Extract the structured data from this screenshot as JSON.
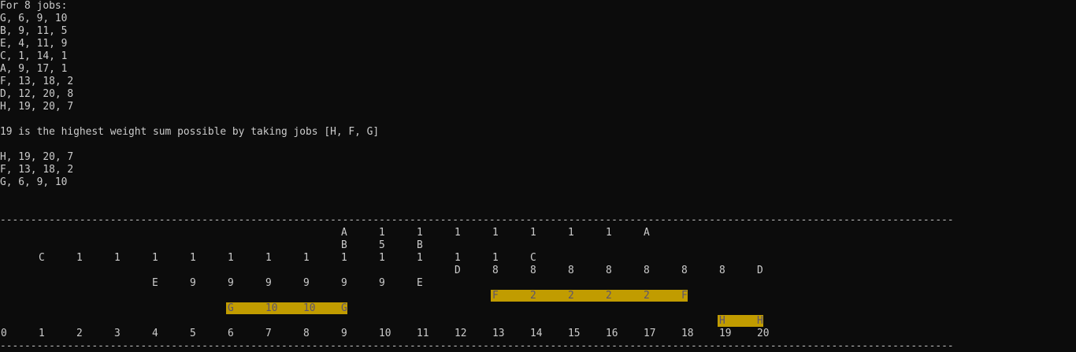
{
  "job_count_line": "For 8 jobs:",
  "jobs": [
    "G, 6, 9, 10",
    "B, 9, 11, 5",
    "E, 4, 11, 9",
    "C, 1, 14, 1",
    "A, 9, 17, 1",
    "F, 13, 18, 2",
    "D, 12, 20, 8",
    "H, 19, 20, 7"
  ],
  "result_line": "19 is the highest weight sum possible by taking jobs [H, F, G]",
  "selected_jobs": [
    "H, 19, 20, 7",
    "F, 13, 18, 2",
    "G, 6, 9, 10"
  ],
  "separator": "------------------------------------------------------------------------------------------------------------------------------------------------------------",
  "axis_labels": [
    "0",
    "1",
    "2",
    "3",
    "4",
    "5",
    "6",
    "7",
    "8",
    "9",
    "10",
    "11",
    "12",
    "13",
    "14",
    "15",
    "16",
    "17",
    "18",
    "19",
    "20"
  ],
  "stack_cells": [
    {
      "row": 0,
      "col": 9,
      "text": "A"
    },
    {
      "row": 0,
      "col": 10,
      "text": "1"
    },
    {
      "row": 0,
      "col": 11,
      "text": "1"
    },
    {
      "row": 0,
      "col": 12,
      "text": "1"
    },
    {
      "row": 0,
      "col": 13,
      "text": "1"
    },
    {
      "row": 0,
      "col": 14,
      "text": "1"
    },
    {
      "row": 0,
      "col": 15,
      "text": "1"
    },
    {
      "row": 0,
      "col": 16,
      "text": "1"
    },
    {
      "row": 0,
      "col": 17,
      "text": "A"
    },
    {
      "row": 1,
      "col": 9,
      "text": "B"
    },
    {
      "row": 1,
      "col": 10,
      "text": "5"
    },
    {
      "row": 1,
      "col": 11,
      "text": "B"
    },
    {
      "row": 2,
      "col": 1,
      "text": "C"
    },
    {
      "row": 2,
      "col": 2,
      "text": "1"
    },
    {
      "row": 2,
      "col": 3,
      "text": "1"
    },
    {
      "row": 2,
      "col": 4,
      "text": "1"
    },
    {
      "row": 2,
      "col": 5,
      "text": "1"
    },
    {
      "row": 2,
      "col": 6,
      "text": "1"
    },
    {
      "row": 2,
      "col": 7,
      "text": "1"
    },
    {
      "row": 2,
      "col": 8,
      "text": "1"
    },
    {
      "row": 2,
      "col": 9,
      "text": "1"
    },
    {
      "row": 2,
      "col": 10,
      "text": "1"
    },
    {
      "row": 2,
      "col": 11,
      "text": "1"
    },
    {
      "row": 2,
      "col": 12,
      "text": "1"
    },
    {
      "row": 2,
      "col": 13,
      "text": "1"
    },
    {
      "row": 2,
      "col": 14,
      "text": "C"
    },
    {
      "row": 3,
      "col": 12,
      "text": "D"
    },
    {
      "row": 3,
      "col": 13,
      "text": "8"
    },
    {
      "row": 3,
      "col": 14,
      "text": "8"
    },
    {
      "row": 3,
      "col": 15,
      "text": "8"
    },
    {
      "row": 3,
      "col": 16,
      "text": "8"
    },
    {
      "row": 3,
      "col": 17,
      "text": "8"
    },
    {
      "row": 3,
      "col": 18,
      "text": "8"
    },
    {
      "row": 3,
      "col": 19,
      "text": "8"
    },
    {
      "row": 3,
      "col": 20,
      "text": "D"
    },
    {
      "row": 4,
      "col": 4,
      "text": "E"
    },
    {
      "row": 4,
      "col": 5,
      "text": "9"
    },
    {
      "row": 4,
      "col": 6,
      "text": "9"
    },
    {
      "row": 4,
      "col": 7,
      "text": "9"
    },
    {
      "row": 4,
      "col": 8,
      "text": "9"
    },
    {
      "row": 4,
      "col": 9,
      "text": "9"
    },
    {
      "row": 4,
      "col": 10,
      "text": "9"
    },
    {
      "row": 4,
      "col": 11,
      "text": "E"
    }
  ],
  "highlighted_bars": [
    {
      "row": 5,
      "start": 13,
      "end": 18,
      "cells": [
        "F",
        "2",
        "2",
        "2",
        "2",
        "F"
      ]
    },
    {
      "row": 6,
      "start": 6,
      "end": 9,
      "cells": [
        "G",
        "10",
        "10",
        "G"
      ]
    },
    {
      "row": 7,
      "start": 19,
      "end": 20,
      "cells": [
        "H",
        "H"
      ]
    }
  ],
  "colors": {
    "background": "#0c0c0c",
    "text": "#cccccc",
    "highlight": "#c19c00",
    "highlight_text": "#5c5470"
  }
}
